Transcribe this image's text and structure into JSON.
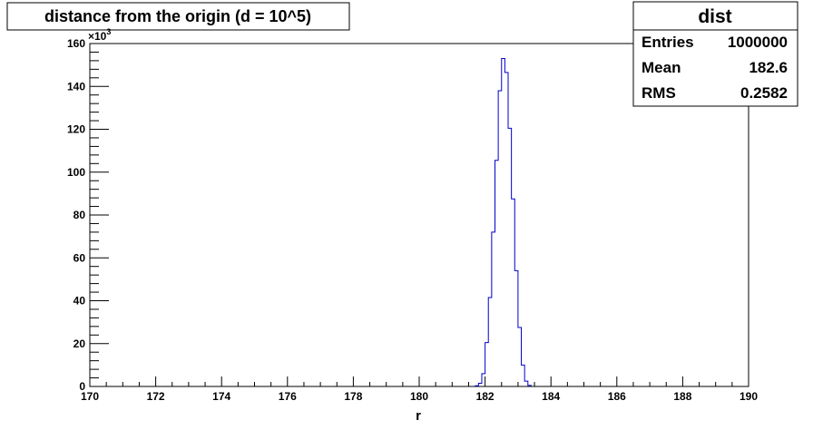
{
  "chart_data": {
    "type": "bar",
    "title": "distance from the origin (d = 10^5)",
    "xlabel": "r",
    "ylabel": "",
    "xlim": [
      170,
      190
    ],
    "ylim": [
      0,
      160000
    ],
    "x_ticks": [
      "170",
      "172",
      "174",
      "176",
      "178",
      "180",
      "182",
      "184",
      "186",
      "188",
      "190"
    ],
    "y_ticks": [
      "0",
      "20",
      "40",
      "60",
      "80",
      "100",
      "120",
      "140",
      "160"
    ],
    "y_multiplier": "×10",
    "y_multiplier_exp": "3",
    "grid": false,
    "histogram": {
      "bin_width": 0.1,
      "bin_edges_start": [
        181.7,
        181.8,
        181.9,
        182.0,
        182.1,
        182.2,
        182.3,
        182.4,
        182.5,
        182.6,
        182.7,
        182.8,
        182.9,
        183.0,
        183.1,
        183.2,
        183.3
      ],
      "counts": [
        300,
        1500,
        6000,
        20500,
        41500,
        72000,
        105500,
        138000,
        153000,
        146500,
        120500,
        87500,
        54000,
        27500,
        10000,
        2500,
        500
      ]
    },
    "stats_box": {
      "name": "dist",
      "rows": [
        {
          "label": "Entries",
          "value": "1000000"
        },
        {
          "label": "Mean",
          "value": "182.6"
        },
        {
          "label": "RMS",
          "value": "0.2582"
        }
      ]
    },
    "colors": {
      "line": "#0000cc",
      "axis": "#000000",
      "frame": "#000000"
    }
  }
}
